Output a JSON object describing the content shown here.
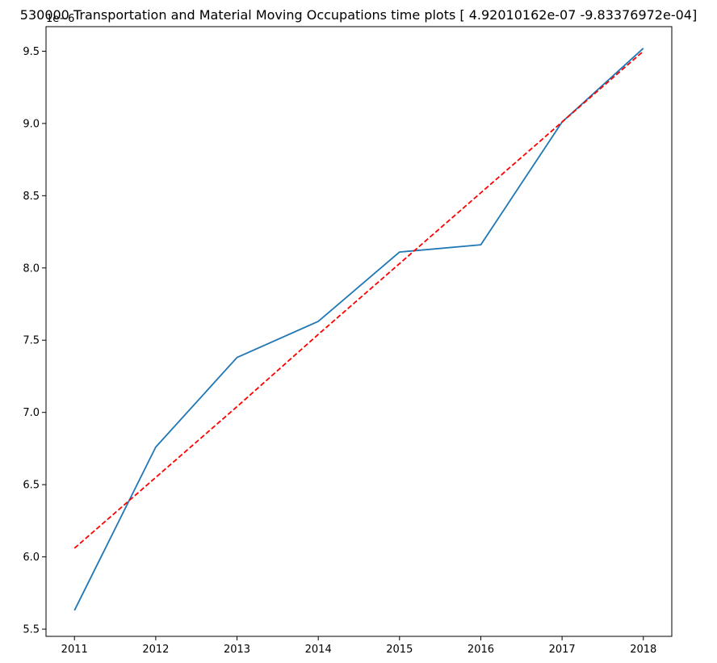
{
  "chart_data": {
    "type": "line",
    "title": "530000 Transportation and Material Moving Occupations time plots [ 4.92010162e-07 -9.83376972e-04]",
    "offset_text": "1e−6",
    "xlabel": "",
    "ylabel": "",
    "x": [
      2011,
      2012,
      2013,
      2014,
      2015,
      2016,
      2017,
      2018
    ],
    "xlim": [
      2010.65,
      2018.35
    ],
    "ylim": [
      5.45,
      9.67
    ],
    "xticks": [
      "2011",
      "2012",
      "2013",
      "2014",
      "2015",
      "2016",
      "2017",
      "2018"
    ],
    "yticks": [
      "5.5",
      "6.0",
      "6.5",
      "7.0",
      "7.5",
      "8.0",
      "8.5",
      "9.0",
      "9.5"
    ],
    "grid": false,
    "series": [
      {
        "values": [
          5.63,
          6.76,
          7.38,
          7.63,
          8.11,
          8.16,
          9.01,
          9.52
        ],
        "color": "#1f77b4",
        "style": "solid"
      },
      {
        "values": [
          6.06,
          6.55,
          7.04,
          7.54,
          8.03,
          8.52,
          9.01,
          9.5
        ],
        "color": "#ff0000",
        "style": "dashed"
      }
    ]
  }
}
